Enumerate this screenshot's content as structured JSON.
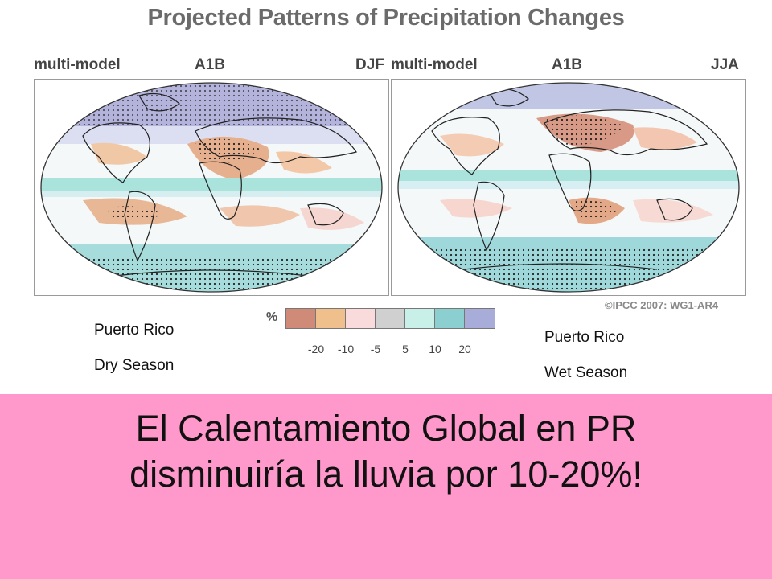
{
  "title": "Projected Patterns of Precipitation Changes",
  "panels": [
    {
      "left_label": "multi-model",
      "center_label": "A1B",
      "right_label": "DJF"
    },
    {
      "left_label": "multi-model",
      "center_label": "A1B",
      "right_label": "JJA"
    }
  ],
  "credit": "©IPCC 2007: WG1-AR4",
  "legend": {
    "unit": "%",
    "colors": [
      "#d08a78",
      "#f0c08c",
      "#fadbdb",
      "#d0d0d0",
      "#c8f0e8",
      "#8ccfd0",
      "#a8acd8"
    ],
    "ticks": [
      "-20",
      "-10",
      "-5",
      "5",
      "10",
      "20"
    ]
  },
  "annotations": {
    "dry": {
      "line1": "Puerto Rico",
      "line2": "Dry Season"
    },
    "wet": {
      "line1": "Puerto Rico",
      "line2": "Wet Season"
    }
  },
  "headline": {
    "line1": "El Calentamiento Global en PR",
    "line2": "disminuiría la lluvia por 10-20%!"
  }
}
